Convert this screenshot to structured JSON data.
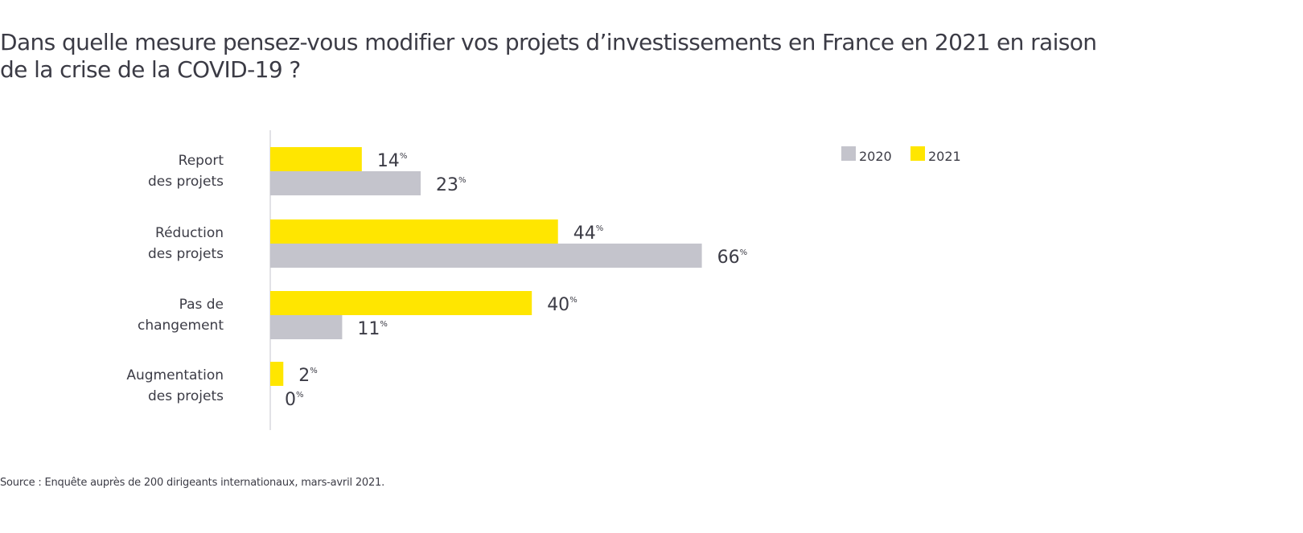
{
  "chart_data": {
    "type": "bar",
    "orientation": "horizontal",
    "title": "Dans quelle mesure pensez-vous modifier vos projets d’investissements en France en 2021 en raison de la crise de la COVID-19 ?",
    "title_lines": [
      "Dans quelle mesure pensez-vous modifier vos projets d’investissements en France en 2021 en raison",
      "de la crise de la COVID-19 ?"
    ],
    "categories": [
      [
        "Report",
        "des projets"
      ],
      [
        "Réduction",
        "des projets"
      ],
      [
        "Pas de",
        "changement"
      ],
      [
        "Augmentation",
        "des projets"
      ]
    ],
    "series": [
      {
        "name": "2021",
        "color": "#ffe600",
        "values": [
          14,
          44,
          40,
          2
        ]
      },
      {
        "name": "2020",
        "color": "#c4c4cc",
        "values": [
          23,
          66,
          11,
          0
        ]
      }
    ],
    "legend": [
      {
        "label": "2020",
        "color": "#c4c4cc"
      },
      {
        "label": "2021",
        "color": "#ffe600"
      }
    ],
    "legend_position": "top-right",
    "unit_suffix": "%",
    "xlabel": "",
    "ylabel": "",
    "xlim": [
      0,
      70
    ],
    "grid": false,
    "source": "Source : Enquête auprès de 200 dirigeants internationaux, mars-avril 2021."
  }
}
